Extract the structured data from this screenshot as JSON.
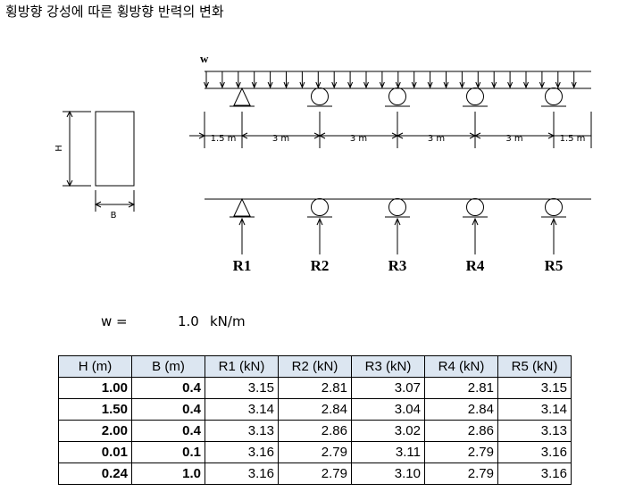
{
  "header": {
    "title": "횡방향 강성에 따른 횡방향 반력의 변화"
  },
  "diagram": {
    "load_label": "w",
    "spans": [
      "1.5 m",
      "3 m",
      "3 m",
      "3 m",
      "3 m",
      "1.5 m"
    ],
    "section": {
      "height_label": "H",
      "width_label": "B"
    },
    "reactions": [
      "R1",
      "R2",
      "R3",
      "R4",
      "R5"
    ]
  },
  "load": {
    "label": "w =",
    "value": "1.0",
    "unit": "kN/m"
  },
  "table": {
    "headers": [
      "H (m)",
      "B (m)",
      "R1 (kN)",
      "R2 (kN)",
      "R3 (kN)",
      "R4 (kN)",
      "R5 (kN)"
    ],
    "rows": [
      [
        "1.00",
        "0.4",
        "3.15",
        "2.81",
        "3.07",
        "2.81",
        "3.15"
      ],
      [
        "1.50",
        "0.4",
        "3.14",
        "2.84",
        "3.04",
        "2.84",
        "3.14"
      ],
      [
        "2.00",
        "0.4",
        "3.13",
        "2.86",
        "3.02",
        "2.86",
        "3.13"
      ],
      [
        "0.01",
        "0.1",
        "3.16",
        "2.79",
        "3.11",
        "2.79",
        "3.16"
      ],
      [
        "0.24",
        "1.0",
        "3.16",
        "2.79",
        "3.10",
        "2.79",
        "3.16"
      ]
    ]
  }
}
